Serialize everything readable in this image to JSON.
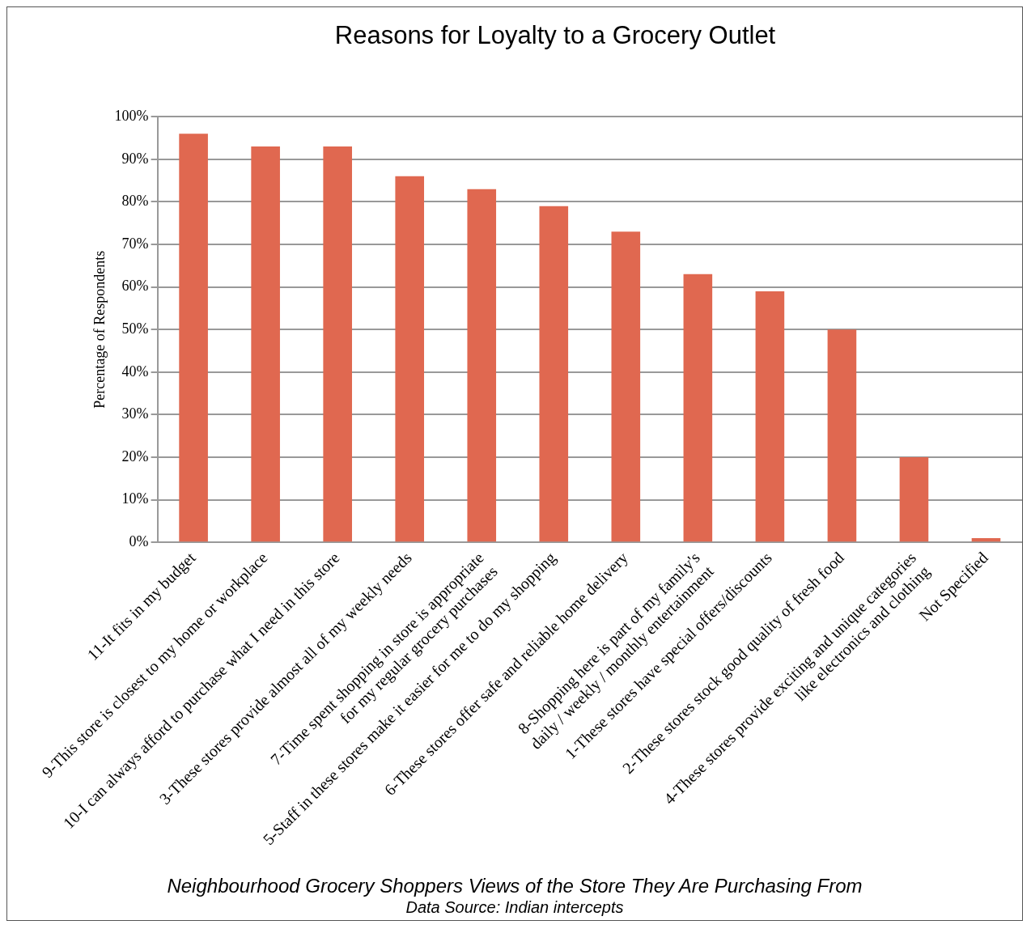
{
  "chart_data": {
    "type": "bar",
    "title": "Reasons for Loyalty to a Grocery Outlet",
    "ylabel": "Percentage of Respondents",
    "categories": [
      "11-It fits in my budget",
      "9-This store is closest to my home or workplace",
      "10-I can always afford to purchase what I need in this store",
      "3-These stores provide almost all of my weekly needs",
      "7-Time spent shopping in store is appropriate\nfor my regular grocery purchases",
      "5-Staff in these stores make it easier for me to do my shopping",
      "6-These stores offer safe and reliable home delivery",
      "8-Shopping here is part of my family's\ndaily / weekly / monthly entertainment",
      "1-These stores have special offers/discounts",
      "2-These stores stock good quality of fresh food",
      "4-These stores provide exciting and unique categories\nlike electronics and clothing",
      "Not Specified"
    ],
    "values": [
      96,
      93,
      93,
      86,
      83,
      79,
      73,
      63,
      59,
      50,
      20,
      1
    ],
    "color": "#e06850",
    "ylim": [
      0,
      100
    ],
    "yticks": [
      {
        "value": 0,
        "label": "0%"
      },
      {
        "value": 10,
        "label": "10%"
      },
      {
        "value": 20,
        "label": "20%"
      },
      {
        "value": 30,
        "label": "30%"
      },
      {
        "value": 40,
        "label": "40%"
      },
      {
        "value": 50,
        "label": "50%"
      },
      {
        "value": 60,
        "label": "60%"
      },
      {
        "value": 70,
        "label": "70%"
      },
      {
        "value": 80,
        "label": "80%"
      },
      {
        "value": 90,
        "label": "90%"
      },
      {
        "value": 100,
        "label": "100%"
      }
    ],
    "grid": "y",
    "legend": false,
    "annotations": [
      "Neighbourhood Grocery Shoppers Views of the Store They Are Purchasing From",
      "Data Source: Indian intercepts"
    ]
  }
}
